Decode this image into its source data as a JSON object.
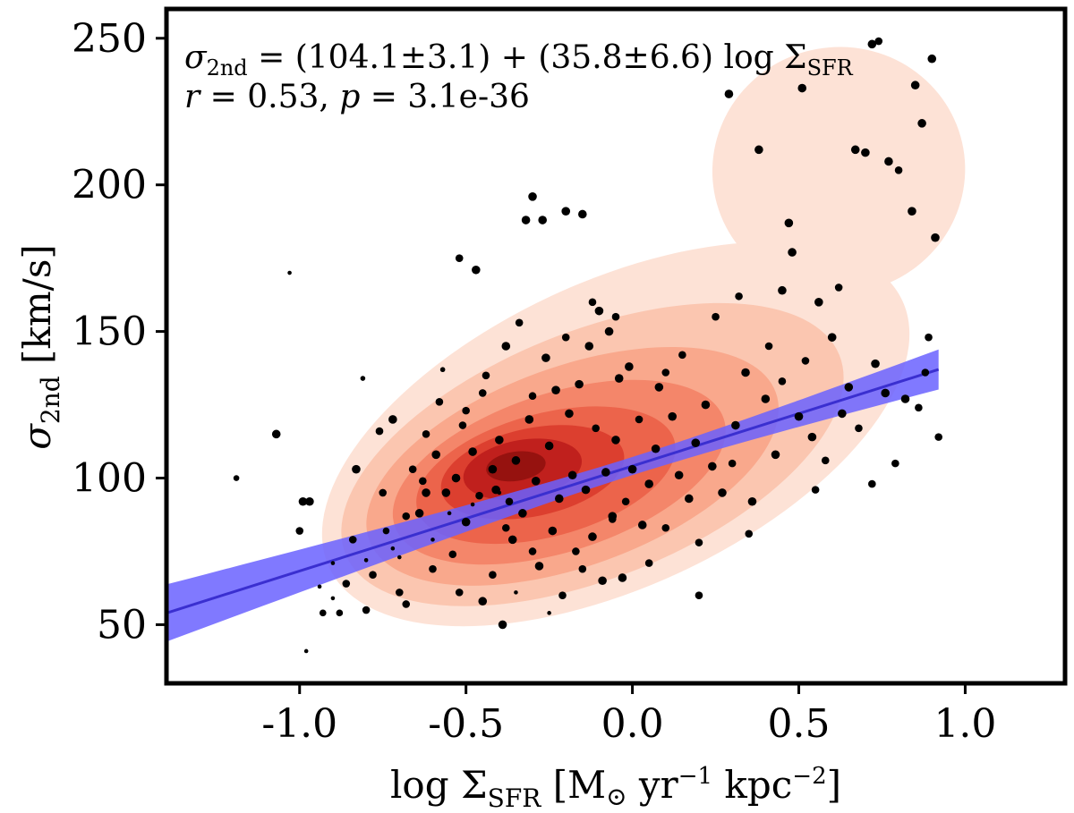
{
  "chart_data": {
    "type": "scatter",
    "xlim": [
      -1.4,
      1.3
    ],
    "ylim": [
      30,
      260
    ],
    "xticks": [
      -1.0,
      -0.5,
      0.0,
      0.5,
      1.0
    ],
    "xtick_labels": [
      "-1.0",
      "-0.5",
      "0.0",
      "0.5",
      "1.0"
    ],
    "yticks": [
      50,
      100,
      150,
      200,
      250
    ],
    "ytick_labels": [
      "50",
      "100",
      "150",
      "200",
      "250"
    ],
    "xlabel": {
      "prefix": "log Σ",
      "sub": "SFR",
      "unit_open": " [M",
      "sun": "⊙",
      "unit_mid": " yr",
      "exp1": "−1",
      "unit_kpc": " kpc",
      "exp2": "−2",
      "close": "]"
    },
    "ylabel": {
      "symbol": "σ",
      "sub": "2nd",
      "unit": " [km/s]"
    },
    "annotation": {
      "line1_sigma": "σ",
      "line1_sub": "2nd",
      "line1_rest": " = (104.1±3.1) + (35.8±6.6) log Σ",
      "line1_sub2": "SFR",
      "line2_r": "r",
      "line2_rval": " = 0.53, ",
      "line2_p": "p",
      "line2_pval": " = 3.1e-36"
    },
    "fit": {
      "intercept": 104.1,
      "intercept_err": 3.1,
      "slope": 35.8,
      "slope_err": 6.6,
      "r": 0.53,
      "p": "3.1e-36",
      "color": "#3a2fd0",
      "band_color": "#6a62ff",
      "x_range": [
        -1.4,
        0.92
      ]
    },
    "density_levels": [
      {
        "level": 1,
        "color": "#fde2d6",
        "cx": -0.05,
        "cy": 115,
        "rx": 0.95,
        "ry": 52,
        "rot": -25
      },
      {
        "level": 2,
        "color": "#fbc6b0",
        "cx": -0.12,
        "cy": 108,
        "rx": 0.8,
        "ry": 42,
        "rot": -22
      },
      {
        "level": 3,
        "color": "#f9a88c",
        "cx": -0.18,
        "cy": 104,
        "rx": 0.65,
        "ry": 34,
        "rot": -20
      },
      {
        "level": 4,
        "color": "#f4866a",
        "cx": -0.22,
        "cy": 102,
        "rx": 0.52,
        "ry": 27,
        "rot": -18
      },
      {
        "level": 5,
        "color": "#ec644b",
        "cx": -0.26,
        "cy": 101,
        "rx": 0.4,
        "ry": 21,
        "rot": -15
      },
      {
        "level": 6,
        "color": "#dc3f2f",
        "cx": -0.3,
        "cy": 102,
        "rx": 0.28,
        "ry": 15,
        "rot": -12
      },
      {
        "level": 7,
        "color": "#c0201d",
        "cx": -0.33,
        "cy": 103,
        "rx": 0.18,
        "ry": 10,
        "rot": -10
      },
      {
        "level": 8,
        "color": "#96120f",
        "cx": -0.35,
        "cy": 104,
        "rx": 0.09,
        "ry": 5,
        "rot": -8
      }
    ],
    "points": [
      [
        -1.19,
        100,
        5
      ],
      [
        -1.07,
        115,
        8
      ],
      [
        -1.03,
        170,
        3
      ],
      [
        -1.0,
        82,
        7
      ],
      [
        -0.99,
        92,
        8
      ],
      [
        -0.98,
        41,
        3
      ],
      [
        -0.97,
        92,
        8
      ],
      [
        -0.94,
        63,
        3
      ],
      [
        -0.93,
        54,
        6
      ],
      [
        -0.9,
        59,
        3
      ],
      [
        -0.88,
        54,
        6
      ],
      [
        -0.86,
        64,
        7
      ],
      [
        -0.83,
        103,
        8
      ],
      [
        -0.81,
        134,
        4
      ],
      [
        -0.8,
        55,
        7
      ],
      [
        -0.78,
        67,
        7
      ],
      [
        -0.76,
        116,
        7
      ],
      [
        -0.74,
        82,
        6
      ],
      [
        -0.72,
        120,
        8
      ],
      [
        -0.7,
        61,
        7
      ],
      [
        -0.68,
        57,
        7
      ],
      [
        -0.66,
        103,
        7
      ],
      [
        -0.64,
        88,
        8
      ],
      [
        -0.63,
        99,
        7
      ],
      [
        -0.62,
        95,
        8
      ],
      [
        -0.6,
        69,
        7
      ],
      [
        -0.59,
        108,
        8
      ],
      [
        -0.57,
        137,
        4
      ],
      [
        -0.56,
        95,
        8
      ],
      [
        -0.54,
        74,
        7
      ],
      [
        -0.53,
        100,
        8
      ],
      [
        -0.52,
        175,
        7
      ],
      [
        -0.51,
        118,
        7
      ],
      [
        -0.5,
        85,
        8
      ],
      [
        -0.48,
        109,
        8
      ],
      [
        -0.47,
        171,
        8
      ],
      [
        -0.46,
        94,
        7
      ],
      [
        -0.45,
        58,
        8
      ],
      [
        -0.44,
        135,
        7
      ],
      [
        -0.42,
        103,
        8
      ],
      [
        -0.41,
        96,
        8
      ],
      [
        -0.4,
        113,
        8
      ],
      [
        -0.39,
        50,
        8
      ],
      [
        -0.38,
        145,
        8
      ],
      [
        -0.37,
        92,
        7
      ],
      [
        -0.36,
        79,
        8
      ],
      [
        -0.35,
        106,
        8
      ],
      [
        -0.34,
        153,
        7
      ],
      [
        -0.33,
        88,
        8
      ],
      [
        -0.32,
        188,
        8
      ],
      [
        -0.31,
        120,
        8
      ],
      [
        -0.3,
        196,
        8
      ],
      [
        -0.29,
        99,
        8
      ],
      [
        -0.28,
        70,
        8
      ],
      [
        -0.27,
        188,
        8
      ],
      [
        -0.26,
        141,
        8
      ],
      [
        -0.25,
        111,
        8
      ],
      [
        -0.24,
        82,
        8
      ],
      [
        -0.23,
        130,
        8
      ],
      [
        -0.22,
        93,
        8
      ],
      [
        -0.21,
        60,
        7
      ],
      [
        -0.2,
        191,
        8
      ],
      [
        -0.19,
        122,
        8
      ],
      [
        -0.18,
        101,
        8
      ],
      [
        -0.17,
        75,
        7
      ],
      [
        -0.16,
        132,
        8
      ],
      [
        -0.15,
        190,
        8
      ],
      [
        -0.14,
        96,
        8
      ],
      [
        -0.13,
        145,
        8
      ],
      [
        -0.12,
        80,
        8
      ],
      [
        -0.11,
        117,
        7
      ],
      [
        -0.1,
        157,
        8
      ],
      [
        -0.09,
        65,
        8
      ],
      [
        -0.08,
        102,
        8
      ],
      [
        -0.07,
        150,
        8
      ],
      [
        -0.06,
        87,
        8
      ],
      [
        -0.05,
        113,
        8
      ],
      [
        -0.04,
        134,
        8
      ],
      [
        -0.03,
        66,
        8
      ],
      [
        -0.02,
        92,
        7
      ],
      [
        -0.01,
        138,
        8
      ],
      [
        0.0,
        103,
        8
      ],
      [
        0.02,
        120,
        7
      ],
      [
        0.03,
        84,
        8
      ],
      [
        0.05,
        98,
        8
      ],
      [
        0.07,
        110,
        8
      ],
      [
        0.08,
        131,
        8
      ],
      [
        0.1,
        83,
        7
      ],
      [
        0.12,
        121,
        8
      ],
      [
        0.14,
        101,
        8
      ],
      [
        0.15,
        142,
        7
      ],
      [
        0.17,
        93,
        8
      ],
      [
        0.19,
        112,
        8
      ],
      [
        0.2,
        78,
        7
      ],
      [
        0.22,
        125,
        8
      ],
      [
        0.24,
        104,
        8
      ],
      [
        0.25,
        155,
        7
      ],
      [
        0.27,
        95,
        8
      ],
      [
        0.29,
        231,
        8
      ],
      [
        0.31,
        118,
        8
      ],
      [
        0.32,
        162,
        7
      ],
      [
        0.34,
        136,
        8
      ],
      [
        0.36,
        92,
        8
      ],
      [
        0.38,
        212,
        8
      ],
      [
        0.4,
        127,
        8
      ],
      [
        0.41,
        145,
        7
      ],
      [
        0.43,
        108,
        8
      ],
      [
        0.45,
        164,
        8
      ],
      [
        0.47,
        187,
        8
      ],
      [
        0.48,
        177,
        8
      ],
      [
        0.5,
        121,
        8
      ],
      [
        0.51,
        233,
        8
      ],
      [
        0.52,
        140,
        7
      ],
      [
        0.54,
        114,
        8
      ],
      [
        0.56,
        160,
        8
      ],
      [
        0.58,
        106,
        7
      ],
      [
        0.6,
        148,
        8
      ],
      [
        0.62,
        165,
        7
      ],
      [
        0.63,
        122,
        8
      ],
      [
        0.65,
        131,
        8
      ],
      [
        0.67,
        212,
        8
      ],
      [
        0.68,
        117,
        7
      ],
      [
        0.7,
        211,
        8
      ],
      [
        0.72,
        248,
        8
      ],
      [
        0.73,
        139,
        8
      ],
      [
        0.74,
        249,
        7
      ],
      [
        0.76,
        129,
        8
      ],
      [
        0.77,
        208,
        8
      ],
      [
        0.79,
        105,
        7
      ],
      [
        0.8,
        205,
        7
      ],
      [
        0.82,
        127,
        8
      ],
      [
        0.84,
        191,
        8
      ],
      [
        0.85,
        234,
        8
      ],
      [
        0.86,
        124,
        7
      ],
      [
        0.87,
        221,
        8
      ],
      [
        0.88,
        136,
        7
      ],
      [
        0.9,
        243,
        8
      ],
      [
        0.91,
        182,
        8
      ],
      [
        0.92,
        114,
        7
      ],
      [
        0.89,
        148,
        7
      ],
      [
        -0.72,
        76,
        3
      ],
      [
        -0.6,
        79,
        3
      ],
      [
        -0.55,
        88,
        3
      ],
      [
        -0.48,
        91,
        3
      ],
      [
        -0.4,
        95,
        3
      ],
      [
        -0.35,
        61,
        3
      ],
      [
        -0.7,
        73,
        3
      ],
      [
        -0.8,
        72,
        3
      ],
      [
        -0.9,
        71,
        3
      ],
      [
        -0.25,
        54,
        3
      ],
      [
        -0.5,
        123,
        7
      ],
      [
        -0.45,
        129,
        7
      ],
      [
        -0.62,
        115,
        7
      ],
      [
        -0.58,
        126,
        7
      ],
      [
        -0.3,
        128,
        7
      ],
      [
        -0.2,
        148,
        7
      ],
      [
        -0.12,
        160,
        7
      ],
      [
        -0.05,
        155,
        7
      ],
      [
        0.1,
        136,
        7
      ],
      [
        0.3,
        105,
        7
      ],
      [
        0.35,
        81,
        7
      ],
      [
        0.2,
        60,
        7
      ],
      [
        0.05,
        71,
        7
      ],
      [
        0.55,
        96,
        7
      ],
      [
        0.72,
        98,
        7
      ],
      [
        -0.42,
        67,
        7
      ],
      [
        -0.3,
        75,
        7
      ],
      [
        -0.15,
        69,
        7
      ],
      [
        -0.06,
        86,
        7
      ],
      [
        -0.68,
        87,
        7
      ],
      [
        -0.75,
        95,
        7
      ],
      [
        -0.84,
        79,
        7
      ],
      [
        -0.52,
        61,
        7
      ],
      [
        -0.38,
        83,
        7
      ],
      [
        0.45,
        133,
        7
      ]
    ]
  }
}
